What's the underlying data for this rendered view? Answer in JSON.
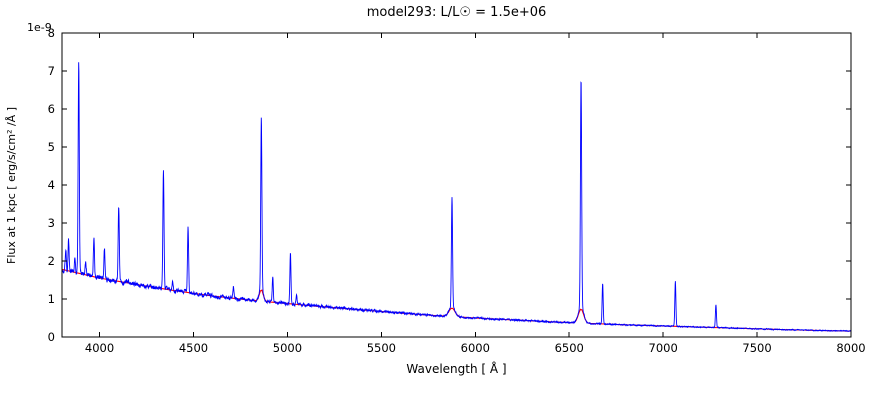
{
  "chart_data": {
    "type": "line",
    "title": "model293: L/L☉ = 1.5e+06",
    "xlabel": "Wavelength [ Å ]",
    "ylabel": "Flux at 1 kpc [ erg/s/cm² /Å ]",
    "offset_label": "1e-9",
    "xlim": [
      3800,
      8000
    ],
    "ylim": [
      0,
      8
    ],
    "xticks": [
      4000,
      4500,
      5000,
      5500,
      6000,
      6500,
      7000,
      7500,
      8000
    ],
    "yticks": [
      0,
      1,
      2,
      3,
      4,
      5,
      6,
      7,
      8
    ],
    "grid": false,
    "legend": "none",
    "series": [
      {
        "name": "spectrum",
        "color": "#0000ff"
      },
      {
        "name": "continuum_fit",
        "color": "#ff0000"
      }
    ],
    "continuum": {
      "x": [
        3800,
        4000,
        4200,
        4400,
        4600,
        4800,
        5000,
        5200,
        5400,
        5600,
        5800,
        6000,
        6200,
        6400,
        6600,
        6800,
        7000,
        7200,
        7400,
        7600,
        7800,
        8000
      ],
      "y": [
        1.78,
        1.55,
        1.38,
        1.22,
        1.08,
        0.97,
        0.88,
        0.79,
        0.71,
        0.63,
        0.56,
        0.5,
        0.45,
        0.4,
        0.36,
        0.32,
        0.29,
        0.26,
        0.23,
        0.2,
        0.175,
        0.155
      ]
    },
    "emission_lines": [
      [
        3820,
        2.3,
        2.8
      ],
      [
        3835,
        2.55,
        2.8
      ],
      [
        3868,
        2.05,
        2.8
      ],
      [
        3889,
        7.3,
        3.0
      ],
      [
        3926,
        1.95,
        2.8
      ],
      [
        3970,
        2.6,
        3.0
      ],
      [
        4009,
        1.6,
        2.8
      ],
      [
        4026,
        2.3,
        2.8
      ],
      [
        4102,
        3.42,
        3.0
      ],
      [
        4144,
        1.5,
        2.8
      ],
      [
        4340,
        4.45,
        3.0
      ],
      [
        4388,
        1.45,
        2.8
      ],
      [
        4471,
        2.87,
        3.0
      ],
      [
        4713,
        1.35,
        2.8
      ],
      [
        4861,
        5.42,
        3.0
      ],
      [
        4922,
        1.58,
        2.8
      ],
      [
        5016,
        2.25,
        2.8
      ],
      [
        5048,
        1.12,
        2.8
      ],
      [
        5876,
        3.42,
        3.0
      ],
      [
        6563,
        6.35,
        3.2
      ],
      [
        6678,
        1.42,
        2.8
      ],
      [
        7065,
        1.47,
        2.8
      ],
      [
        7281,
        0.86,
        2.8
      ]
    ],
    "broad_components": [
      [
        4861,
        1.3,
        10
      ],
      [
        5876,
        0.8,
        16
      ],
      [
        6563,
        0.8,
        14
      ]
    ],
    "axis_color": "#000000",
    "background_color": "#ffffff"
  }
}
